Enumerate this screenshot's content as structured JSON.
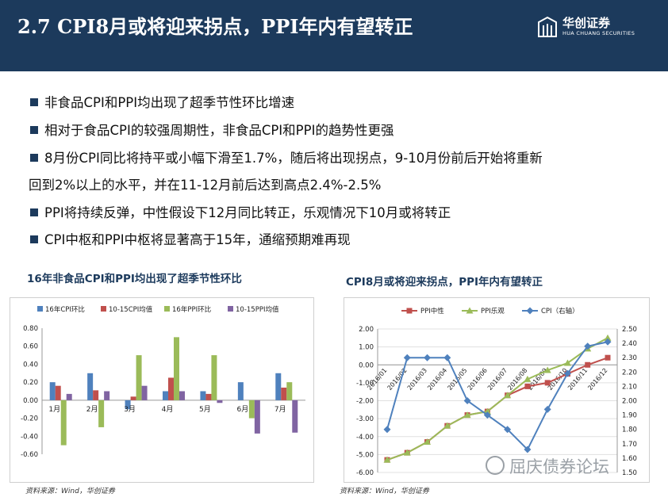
{
  "header": {
    "title": "2.7  CPI8月或将迎来拐点，PPI年内有望转正",
    "logo_cn": "华创证券",
    "logo_en": "HUA CHUANG SECURITIES"
  },
  "bullets": [
    "非食品CPI和PPI均出现了超季节性环比增速",
    "相对于食品CPI的较强周期性，非食品CPI和PPI的趋势性更强",
    "8月份CPI同比将持平或小幅下滑至1.7%，随后将出现拐点，9-10月份前后开始将重新",
    "回到2%以上的水平，并在11-12月前后达到高点2.4%-2.5%",
    "PPI将持续反弹，中性假设下12月同比转正，乐观情况下10月或将转正",
    "CPI中枢和PPI中枢将显著高于15年，通缩预期难再现"
  ],
  "colors": {
    "navy": "#1c3a5c",
    "blue": "#4f81bd",
    "red": "#c0504d",
    "green": "#9bbb59",
    "purple": "#8064a2"
  },
  "chart_data": [
    {
      "type": "bar",
      "title": "16年非食品CPI和PPI均出现了超季节性环比",
      "categories": [
        "1月",
        "2月",
        "3月",
        "4月",
        "5月",
        "6月",
        "7月"
      ],
      "ylim": [
        -0.6,
        0.8
      ],
      "yticks": [
        "-0.60",
        "-0.40",
        "-0.20",
        "0.00",
        "0.20",
        "0.40",
        "0.60",
        "0.80"
      ],
      "legend_position": "top",
      "series": [
        {
          "name": "16年CPI环比",
          "color": "#4f81bd",
          "values": [
            0.2,
            0.3,
            -0.1,
            0.1,
            0.1,
            0.2,
            0.3
          ]
        },
        {
          "name": "10-15CPI均值",
          "color": "#c0504d",
          "values": [
            0.16,
            0.11,
            0.04,
            0.25,
            0.07,
            0.0,
            0.14
          ]
        },
        {
          "name": "16年PPI环比",
          "color": "#9bbb59",
          "values": [
            -0.5,
            -0.3,
            0.5,
            0.7,
            0.5,
            -0.2,
            0.2
          ]
        },
        {
          "name": "10-15PPI均值",
          "color": "#8064a2",
          "values": [
            0.07,
            0.1,
            0.16,
            0.1,
            -0.03,
            -0.37,
            -0.36
          ]
        }
      ],
      "source": "资料来源：Wind，华创证券"
    },
    {
      "type": "line",
      "title": "CPI8月或将迎来拐点，PPI年内有望转正",
      "categories": [
        "2016/01",
        "2016/02",
        "2016/03",
        "2016/04",
        "2016/05",
        "2016/06",
        "2016/07",
        "2016/08",
        "2016/09",
        "2016/10",
        "2016/11",
        "2016/12"
      ],
      "ylim": [
        -6,
        2
      ],
      "yticks": [
        "-6.00",
        "-5.00",
        "-4.00",
        "-3.00",
        "-2.00",
        "-1.00",
        "0.00",
        "1.00",
        "2.00"
      ],
      "y2lim": [
        1.5,
        2.5
      ],
      "y2ticks": [
        "1.50",
        "1.60",
        "1.70",
        "1.80",
        "1.90",
        "2.00",
        "2.10",
        "2.20",
        "2.30",
        "2.40",
        "2.50"
      ],
      "legend_position": "top",
      "series": [
        {
          "name": "PPI中性",
          "color": "#c0504d",
          "marker": "square",
          "axis": "left",
          "values": [
            -5.3,
            -4.9,
            -4.3,
            -3.4,
            -2.8,
            -2.6,
            -1.7,
            -1.2,
            -1.0,
            -0.5,
            0.0,
            0.4
          ]
        },
        {
          "name": "PPI乐观",
          "color": "#9bbb59",
          "marker": "triangle",
          "axis": "left",
          "values": [
            -5.3,
            -4.9,
            -4.3,
            -3.4,
            -2.8,
            -2.6,
            -1.7,
            -0.8,
            -0.3,
            0.1,
            0.9,
            1.5
          ]
        },
        {
          "name": "CPI（右轴）",
          "color": "#4f81bd",
          "marker": "diamond",
          "axis": "right",
          "values": [
            1.8,
            2.3,
            2.3,
            2.3,
            2.0,
            1.9,
            1.8,
            1.66,
            1.94,
            2.19,
            2.38,
            2.41
          ]
        }
      ],
      "source": "资料来源：Wind，华创证券"
    }
  ],
  "watermark": "屈庆债券论坛"
}
